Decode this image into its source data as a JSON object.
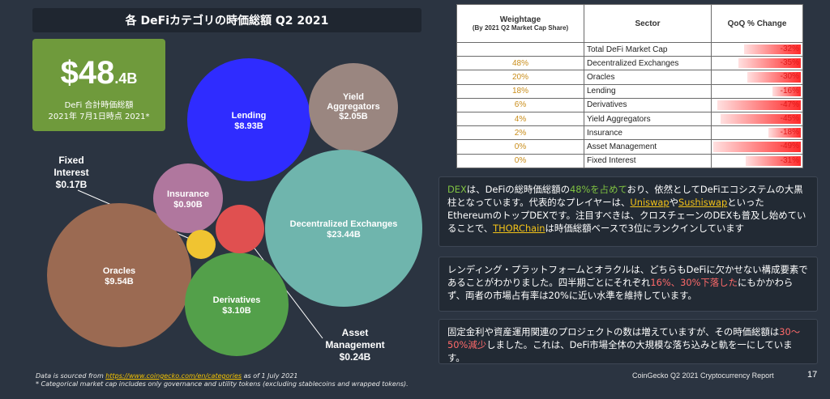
{
  "title": "各 DeFiカテゴリの時価総額 Q2 2021",
  "total": {
    "value_main": "$48",
    "value_decimal": ".4B",
    "label_line1": "DeFi 合計時価総額",
    "label_line2": "2021年 7月1日時点 2021*"
  },
  "chart_data": {
    "type": "bubble",
    "unit": "USD billions",
    "bubbles": [
      {
        "name": "Lending",
        "value_label": "$8.93B",
        "value": 8.93,
        "color": "#2f2cff",
        "label_placement": "inside"
      },
      {
        "name": "Yield Aggregators",
        "value_label": "$2.05B",
        "value": 2.05,
        "color": "#9a8680",
        "label_placement": "inside"
      },
      {
        "name": "Decentralized Exchanges",
        "value_label": "$23.44B",
        "value": 23.44,
        "color": "#6fb5ad",
        "label_placement": "inside"
      },
      {
        "name": "Oracles",
        "value_label": "$9.54B",
        "value": 9.54,
        "color": "#9b6a52",
        "label_placement": "inside"
      },
      {
        "name": "Derivatives",
        "value_label": "$3.10B",
        "value": 3.1,
        "color": "#53a04a",
        "label_placement": "inside"
      },
      {
        "name": "Insurance",
        "value_label": "$0.90B",
        "value": 0.9,
        "color": "#b0779e",
        "label_placement": "inside"
      },
      {
        "name": "Fixed Interest",
        "value_label": "$0.17B",
        "value": 0.17,
        "color": "#f0c431",
        "label_placement": "outside"
      },
      {
        "name": "Asset Management",
        "value_label": "$0.24B",
        "value": 0.24,
        "color": "#e05050",
        "label_placement": "outside"
      }
    ]
  },
  "outside_labels": {
    "fixed_interest": {
      "line1": "Fixed",
      "line2": "Interest",
      "line3": "$0.17B"
    },
    "asset_management": {
      "line1": "Asset",
      "line2": "Management",
      "line3": "$0.24B"
    }
  },
  "note": {
    "prefix": "Data is sourced from ",
    "link": "https://www.coingecko.com/en/categories",
    "suffix": "  as of 1 July 2021",
    "line2": "* Categorical market cap includes only governance and utility tokens (excluding stablecoins and wrapped tokens)."
  },
  "table": {
    "headers": {
      "weight": "Weightage",
      "weight_sub": "(By 2021 Q2 Market Cap Share)",
      "sector": "Sector",
      "qoq": "QoQ % Change"
    },
    "rows": [
      {
        "weight": "",
        "sector": "Total DeFi Market Cap",
        "qoq": "-32%",
        "qoq_value": -32
      },
      {
        "weight": "48%",
        "sector": "Decentralized Exchanges",
        "qoq": "-35%",
        "qoq_value": -35
      },
      {
        "weight": "20%",
        "sector": "Oracles",
        "qoq": "-30%",
        "qoq_value": -30
      },
      {
        "weight": "18%",
        "sector": "Lending",
        "qoq": "-16%",
        "qoq_value": -16
      },
      {
        "weight": "6%",
        "sector": "Derivatives",
        "qoq": "-47%",
        "qoq_value": -47
      },
      {
        "weight": "4%",
        "sector": "Yield Aggregators",
        "qoq": "-45%",
        "qoq_value": -45
      },
      {
        "weight": "2%",
        "sector": "Insurance",
        "qoq": "-18%",
        "qoq_value": -18
      },
      {
        "weight": "0%",
        "sector": "Asset Management",
        "qoq": "-49%",
        "qoq_value": -49
      },
      {
        "weight": "0%",
        "sector": "Fixed Interest",
        "qoq": "-31%",
        "qoq_value": -31
      }
    ]
  },
  "paragraphs": {
    "p1": {
      "a": "DEX",
      "b": "は、DeFiの総時価総額の",
      "c": "48%を占めて",
      "d": "おり、依然としてDeFiエコシステムの大黒柱となっています。代表的なプレイヤーは、",
      "e": "Uniswap",
      "f": "や",
      "g": "Sushiswap",
      "h": "といったEthereumのトップDEXです。注目すべきは、クロスチェーンのDEXも普及し始めていることで、",
      "i": "THORChain",
      "j": "は時価総額ベースで3位にランクインしています"
    },
    "p2": {
      "a": "レンディング・プラットフォームとオラクルは、どちらもDeFiに欠かせない構成要素であることがわかりました。四半期ごとにそれぞれ",
      "b": "16%、30%下落した",
      "c": "にもかかわらず、両者の市場占有率は20%に近い水準を維持しています。"
    },
    "p3": {
      "a": "固定金利や資産運用関連のプロジェクトの数は増えていますが、その時価総額は",
      "b": "30～50%減少",
      "c": "しました。これは、DeFi市場全体の大規模な落ち込みと軌を一にしています。"
    }
  },
  "footer": "CoinGecko Q2 2021 Cryptocurrency Report",
  "page_number": "17"
}
